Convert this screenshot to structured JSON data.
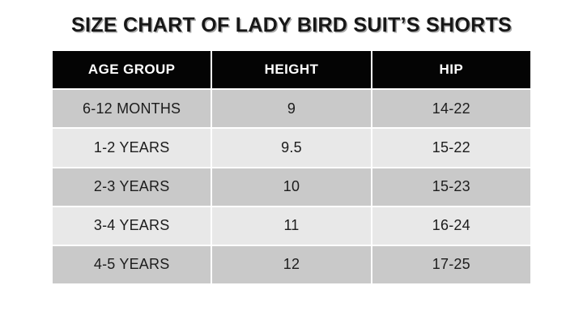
{
  "title": "SIZE CHART OF LADY BIRD SUIT’S SHORTS",
  "table": {
    "columns": [
      "AGE GROUP",
      "HEIGHT",
      "HIP"
    ],
    "rows": [
      [
        "6-12 MONTHS",
        "9",
        "14-22"
      ],
      [
        "1-2 YEARS",
        "9.5",
        "15-22"
      ],
      [
        "2-3 YEARS",
        "10",
        "15-23"
      ],
      [
        "3-4 YEARS",
        "11",
        "16-24"
      ],
      [
        "4-5 YEARS",
        "12",
        "17-25"
      ]
    ]
  },
  "colors": {
    "header_bg": "#040404",
    "header_text": "#ffffff",
    "row_dark": "#c9c9c9",
    "row_light": "#e8e8e8",
    "title_text": "#171717",
    "cell_text": "#1c1c1c",
    "background": "#ffffff"
  },
  "chart_data": {
    "type": "table",
    "title": "SIZE CHART OF LADY BIRD SUIT’S SHORTS",
    "columns": [
      "AGE GROUP",
      "HEIGHT",
      "HIP"
    ],
    "rows": [
      [
        "6-12 MONTHS",
        "9",
        "14-22"
      ],
      [
        "1-2 YEARS",
        "9.5",
        "15-22"
      ],
      [
        "2-3 YEARS",
        "10",
        "15-23"
      ],
      [
        "3-4 YEARS",
        "11",
        "16-24"
      ],
      [
        "4-5 YEARS",
        "12",
        "17-25"
      ]
    ],
    "layout_hints": {
      "header_style": "black background, white bold text",
      "row_striping": "alternating dark/light gray starting dark",
      "alignment": "all cells centered"
    }
  }
}
